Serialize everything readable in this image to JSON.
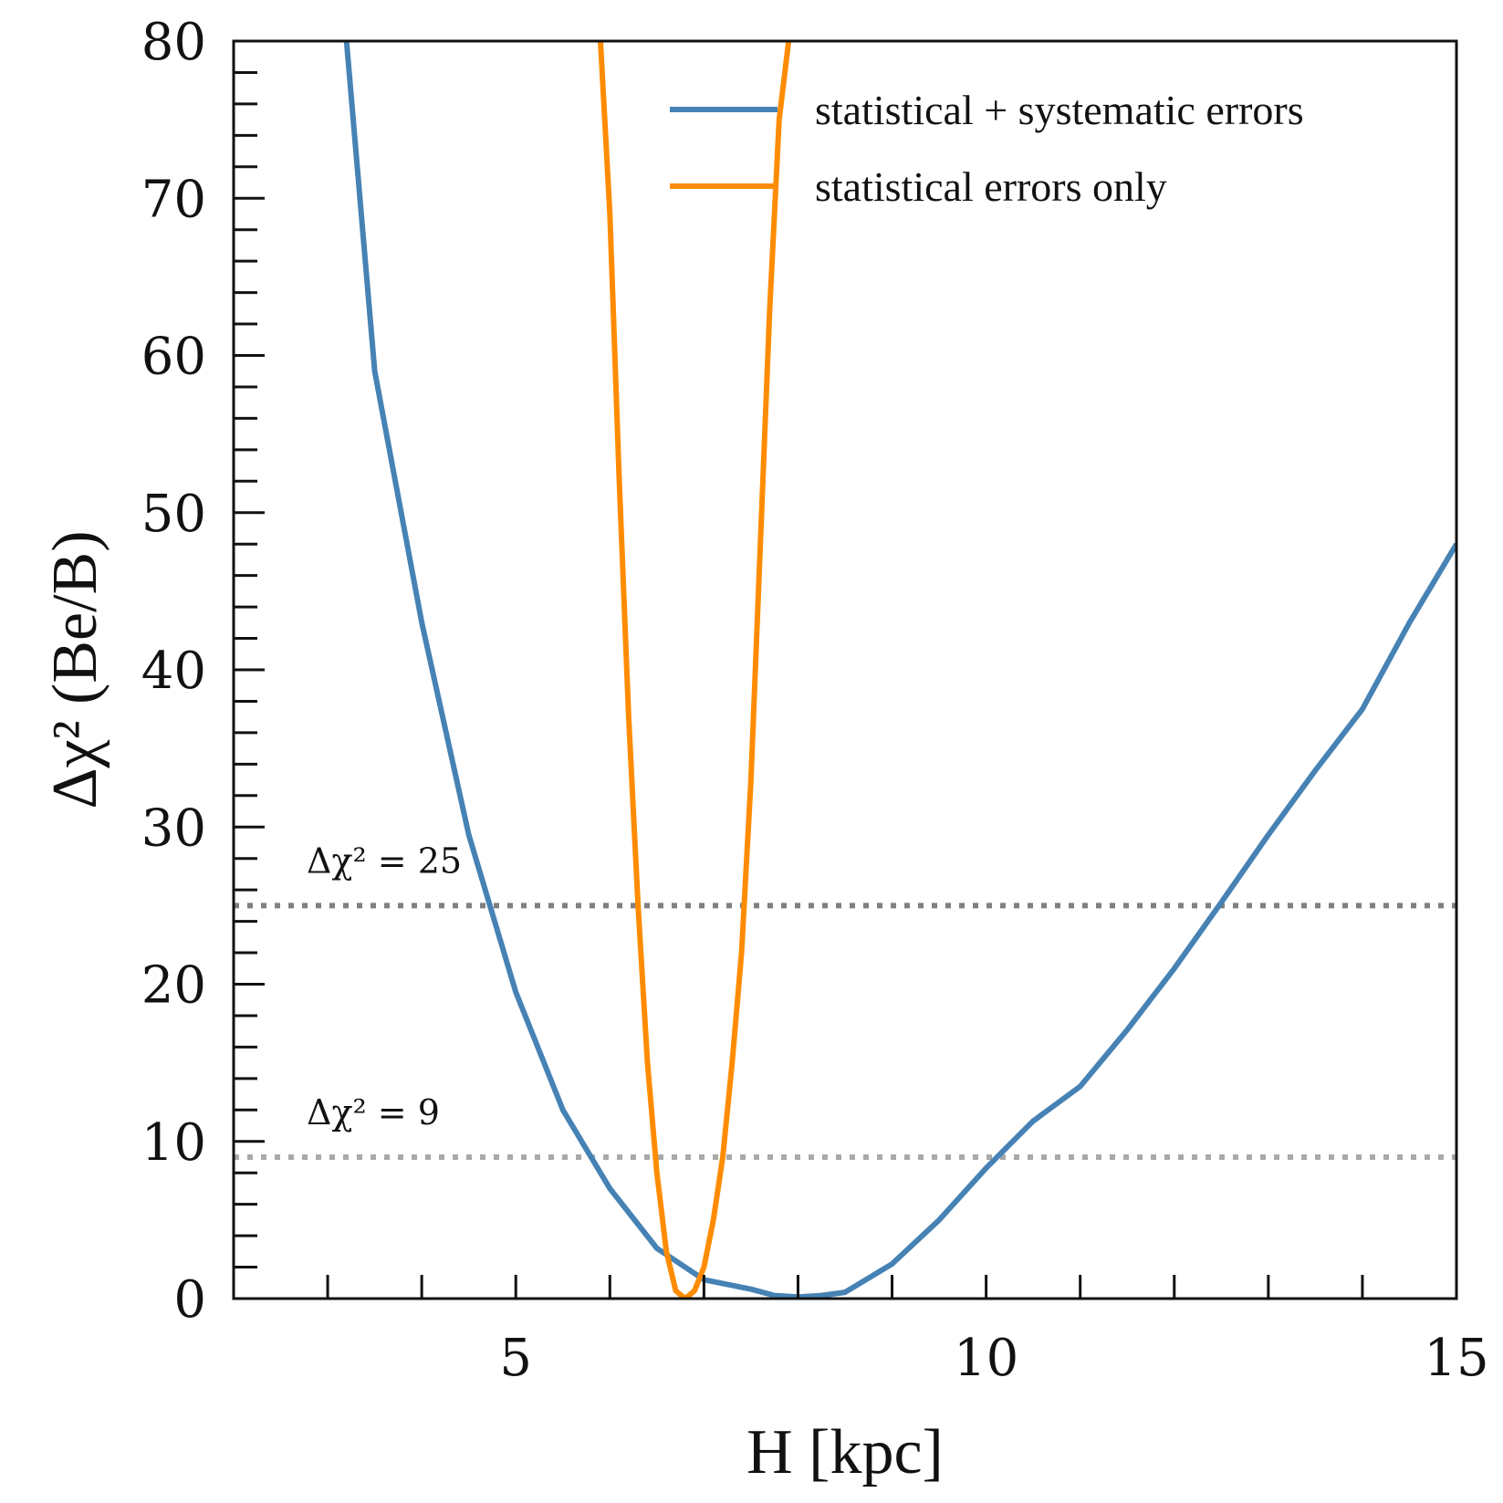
{
  "chart_data": {
    "type": "line",
    "xlabel": "H [kpc]",
    "ylabel": "Δχ² (Be/B)",
    "xlim": [
      2,
      15
    ],
    "ylim": [
      0,
      80
    ],
    "xticks_major": [
      5,
      10,
      15
    ],
    "xticks_minor": [
      3,
      4,
      6,
      7,
      8,
      9,
      11,
      12,
      13,
      14
    ],
    "yticks_major": [
      0,
      10,
      20,
      30,
      40,
      50,
      60,
      70,
      80
    ],
    "yticks_minor_step": 2,
    "grid": false,
    "legend_position": "top-right",
    "series": [
      {
        "name": "statistical + systematic errors",
        "color": "#4682b4",
        "x": [
          3.2,
          3.5,
          4.0,
          4.5,
          5.0,
          5.5,
          6.0,
          6.5,
          7.0,
          7.5,
          7.75,
          8.0,
          8.25,
          8.5,
          9.0,
          9.5,
          10.0,
          10.5,
          11.0,
          11.5,
          12.0,
          12.5,
          13.0,
          13.5,
          14.0,
          14.5,
          15.0
        ],
        "y": [
          80,
          59,
          43,
          29.5,
          19.5,
          12,
          7,
          3.2,
          1.2,
          0.6,
          0.2,
          0.1,
          0.2,
          0.4,
          2.2,
          5,
          8.3,
          11.3,
          13.5,
          17.1,
          21,
          25.2,
          29.5,
          33.6,
          37.5,
          43,
          48
        ]
      },
      {
        "name": "statistical errors only",
        "color": "#ff8c00",
        "x": [
          5.9,
          6.0,
          6.1,
          6.2,
          6.3,
          6.4,
          6.5,
          6.6,
          6.7,
          6.8,
          6.9,
          7.0,
          7.1,
          7.2,
          7.3,
          7.4,
          7.5,
          7.6,
          7.7,
          7.8,
          7.9
        ],
        "y": [
          80,
          69,
          52,
          37,
          25,
          15,
          8,
          3,
          0.5,
          0,
          0.5,
          2,
          5,
          9,
          15,
          22,
          33,
          48,
          63,
          75,
          80
        ]
      }
    ],
    "annotations": [
      {
        "text": "Δχ² = 25",
        "y": 25,
        "color": "#808080"
      },
      {
        "text": "Δχ² = 9",
        "y": 9,
        "color": "#a9a9a9"
      }
    ]
  }
}
